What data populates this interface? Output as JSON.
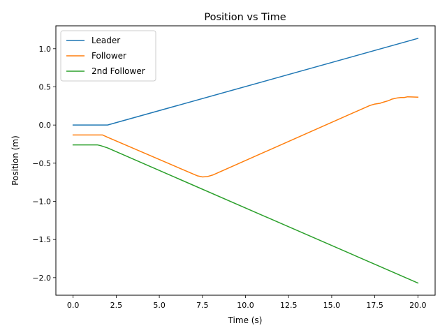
{
  "chart_data": {
    "type": "line",
    "title": "Position vs Time",
    "xlabel": "Time (s)",
    "ylabel": "Position (m)",
    "xlim": [
      -1.0,
      21.0
    ],
    "ylim": [
      -2.23,
      1.3
    ],
    "xticks": [
      0.0,
      2.5,
      5.0,
      7.5,
      10.0,
      12.5,
      15.0,
      17.5,
      20.0
    ],
    "xtick_labels": [
      "0.0",
      "2.5",
      "5.0",
      "7.5",
      "10.0",
      "12.5",
      "15.0",
      "17.5",
      "20.0"
    ],
    "yticks": [
      1.0,
      0.5,
      0.0,
      -0.5,
      -1.0,
      -1.5,
      -2.0
    ],
    "ytick_labels": [
      "1.0",
      "0.5",
      "0.0",
      "−0.5",
      "−1.0",
      "−1.5",
      "−2.0"
    ],
    "grid": false,
    "legend_position": "upper-left",
    "series": [
      {
        "name": "Leader",
        "color": "#1f77b4",
        "x": [
          0,
          2.0,
          20.0
        ],
        "y": [
          0.0,
          0.0,
          1.135
        ]
      },
      {
        "name": "Follower",
        "color": "#ff7f0e",
        "x": [
          0,
          1.7,
          2.0,
          7.2,
          7.5,
          7.8,
          8.1,
          17.2,
          17.5,
          17.8,
          18.0,
          18.3,
          18.5,
          18.8,
          19.0,
          19.2,
          19.4,
          19.6,
          20.0
        ],
        "y": [
          -0.13,
          -0.13,
          -0.16,
          -0.665,
          -0.68,
          -0.675,
          -0.655,
          0.255,
          0.275,
          0.285,
          0.3,
          0.32,
          0.34,
          0.355,
          0.36,
          0.36,
          0.37,
          0.368,
          0.365
        ]
      },
      {
        "name": "2nd Follower",
        "color": "#2ca02c",
        "x": [
          0,
          1.4,
          1.6,
          2.0,
          20.0
        ],
        "y": [
          -0.26,
          -0.26,
          -0.27,
          -0.3,
          -2.07
        ]
      }
    ]
  }
}
